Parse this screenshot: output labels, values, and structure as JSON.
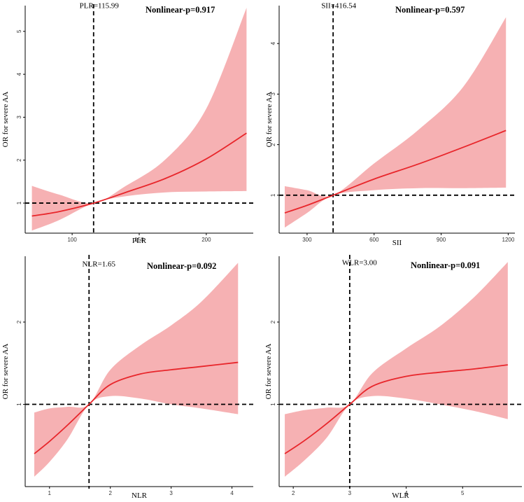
{
  "chart_data": [
    {
      "type": "area",
      "panel": "top-left",
      "title": "",
      "xlabel": "PLR",
      "ylabel": "OR for severe AA",
      "xlim": [
        65,
        235
      ],
      "ylim": [
        0.3,
        5.6
      ],
      "xticks": [
        100,
        150,
        200
      ],
      "yticks": [
        1,
        2,
        3,
        4,
        5
      ],
      "cutoff_label": "PLR=115.99",
      "cutoff_value": 115.99,
      "reference_y": 1,
      "nonlinear_label": "Nonlinear-p=0.917",
      "series": [
        {
          "name": "OR",
          "x": [
            70,
            90,
            115.99,
            140,
            170,
            200,
            230
          ],
          "values": [
            0.7,
            0.8,
            1.0,
            1.25,
            1.58,
            2.03,
            2.63
          ]
        },
        {
          "name": "lower_ci",
          "x": [
            70,
            90,
            115.99,
            140,
            170,
            200,
            230
          ],
          "values": [
            0.36,
            0.6,
            1.0,
            1.16,
            1.25,
            1.27,
            1.28
          ]
        },
        {
          "name": "upper_ci",
          "x": [
            70,
            90,
            115.99,
            140,
            170,
            200,
            230
          ],
          "values": [
            1.4,
            1.2,
            1.0,
            1.4,
            2.03,
            3.2,
            5.55
          ]
        }
      ]
    },
    {
      "type": "area",
      "panel": "top-right",
      "title": "",
      "xlabel": "SII",
      "ylabel": "OR for severe AA",
      "xlim": [
        175,
        1230
      ],
      "ylim": [
        0.25,
        4.75
      ],
      "xticks": [
        300,
        600,
        900,
        1200
      ],
      "yticks": [
        1,
        2,
        3,
        4
      ],
      "cutoff_label": "SII=416.54",
      "cutoff_value": 416.54,
      "reference_y": 1,
      "nonlinear_label": "Nonlinear-p=0.597",
      "series": [
        {
          "name": "OR",
          "x": [
            200,
            300,
            416.54,
            600,
            800,
            1000,
            1190
          ],
          "values": [
            0.65,
            0.8,
            1.0,
            1.32,
            1.62,
            1.95,
            2.28
          ]
        },
        {
          "name": "lower_ci",
          "x": [
            200,
            300,
            416.54,
            600,
            800,
            1000,
            1190
          ],
          "values": [
            0.36,
            0.65,
            1.0,
            1.1,
            1.14,
            1.14,
            1.15
          ]
        },
        {
          "name": "upper_ci",
          "x": [
            200,
            300,
            416.54,
            600,
            800,
            1000,
            1190
          ],
          "values": [
            1.18,
            1.1,
            1.0,
            1.63,
            2.3,
            3.15,
            4.52
          ]
        }
      ]
    },
    {
      "type": "area",
      "panel": "bottom-left",
      "title": "",
      "xlabel": "NLR",
      "ylabel": "OR for severe AA",
      "xlim": [
        0.6,
        4.35
      ],
      "ylim": [
        0.0,
        2.8
      ],
      "xticks": [
        1,
        2,
        3,
        4
      ],
      "yticks": [
        1,
        2
      ],
      "cutoff_label": "NLR=1.65",
      "cutoff_value": 1.65,
      "reference_y": 1,
      "nonlinear_label": "Nonlinear-p=0.092",
      "series": [
        {
          "name": "OR",
          "x": [
            0.75,
            1.0,
            1.3,
            1.65,
            2.0,
            2.5,
            3.0,
            3.5,
            4.1
          ],
          "values": [
            0.4,
            0.55,
            0.75,
            1.0,
            1.24,
            1.37,
            1.42,
            1.46,
            1.51
          ]
        },
        {
          "name": "lower_ci",
          "x": [
            0.75,
            1.0,
            1.3,
            1.65,
            2.0,
            2.5,
            3.0,
            3.5,
            4.1
          ],
          "values": [
            0.12,
            0.3,
            0.58,
            1.0,
            1.1,
            1.07,
            1.0,
            0.95,
            0.88
          ]
        },
        {
          "name": "upper_ci",
          "x": [
            0.75,
            1.0,
            1.3,
            1.65,
            2.0,
            2.5,
            3.0,
            3.5,
            4.1
          ],
          "values": [
            0.9,
            0.95,
            0.97,
            1.0,
            1.42,
            1.72,
            1.96,
            2.25,
            2.72
          ]
        }
      ]
    },
    {
      "type": "area",
      "panel": "bottom-right",
      "title": "",
      "xlabel": "WLR",
      "ylabel": "OR for severe AA",
      "xlim": [
        1.75,
        6.05
      ],
      "ylim": [
        0.0,
        2.8
      ],
      "xticks": [
        2,
        3,
        4,
        5
      ],
      "yticks": [
        1,
        2
      ],
      "cutoff_label": "WLR=3.00",
      "cutoff_value": 3.0,
      "reference_y": 1,
      "nonlinear_label": "Nonlinear-p=0.091",
      "series": [
        {
          "name": "OR",
          "x": [
            1.85,
            2.2,
            2.6,
            3.0,
            3.4,
            4.0,
            4.6,
            5.2,
            5.8
          ],
          "values": [
            0.4,
            0.56,
            0.77,
            1.0,
            1.22,
            1.34,
            1.39,
            1.43,
            1.48
          ]
        },
        {
          "name": "lower_ci",
          "x": [
            1.85,
            2.2,
            2.6,
            3.0,
            3.4,
            4.0,
            4.6,
            5.2,
            5.8
          ],
          "values": [
            0.12,
            0.32,
            0.6,
            1.0,
            1.1,
            1.07,
            1.0,
            0.92,
            0.82
          ]
        },
        {
          "name": "upper_ci",
          "x": [
            1.85,
            2.2,
            2.6,
            3.0,
            3.4,
            4.0,
            4.6,
            5.2,
            5.8
          ],
          "values": [
            0.88,
            0.93,
            0.96,
            1.0,
            1.38,
            1.68,
            1.95,
            2.3,
            2.73
          ]
        }
      ]
    }
  ]
}
